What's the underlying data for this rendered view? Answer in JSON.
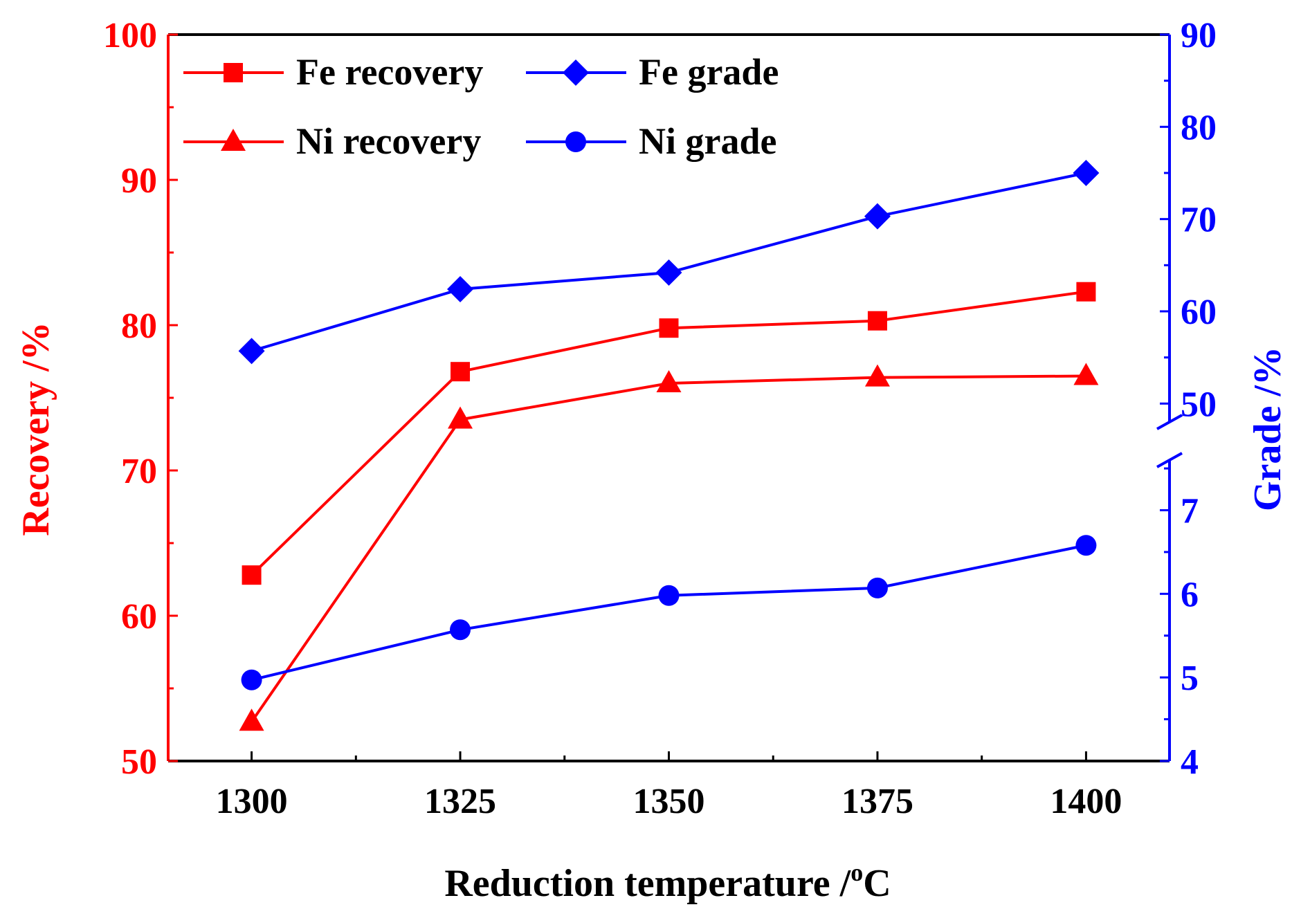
{
  "chart_data": {
    "type": "line",
    "title": "",
    "x": [
      1300,
      1325,
      1350,
      1375,
      1400
    ],
    "x_tick_labels": [
      "1300",
      "1325",
      "1350",
      "1375",
      "1400"
    ],
    "xlabel": "Reduction temperature /",
    "xlabel_superscript": "o",
    "xlabel_unit": "C",
    "xlim": [
      1290,
      1410
    ],
    "y_left": {
      "label": "Recovery  /%",
      "range": [
        50,
        100
      ],
      "ticks": [
        "50",
        "60",
        "70",
        "80",
        "90",
        "100"
      ],
      "color": "#ff0000"
    },
    "y_right": {
      "label": "Grade /%",
      "broken": true,
      "lower_range": [
        4,
        7.6
      ],
      "lower_ticks": [
        "4",
        "5",
        "6",
        "7"
      ],
      "upper_range": [
        48,
        90
      ],
      "upper_ticks": [
        "50",
        "60",
        "70",
        "80",
        "90"
      ],
      "color": "#0000ff"
    },
    "series": [
      {
        "name": "Fe recovery",
        "axis": "left",
        "marker": "square",
        "color": "#ff0000",
        "values": [
          62.8,
          76.8,
          79.8,
          80.3,
          82.3
        ]
      },
      {
        "name": "Ni recovery",
        "axis": "left",
        "marker": "triangle",
        "color": "#ff0000",
        "values": [
          52.7,
          73.5,
          76.0,
          76.4,
          76.5
        ]
      },
      {
        "name": "Fe grade",
        "axis": "right-upper",
        "marker": "diamond",
        "color": "#0000ff",
        "values": [
          55.7,
          62.4,
          64.2,
          70.3,
          75.0
        ]
      },
      {
        "name": "Ni grade",
        "axis": "right-lower",
        "marker": "circle",
        "color": "#0000ff",
        "values": [
          4.97,
          5.57,
          5.98,
          6.07,
          6.58
        ]
      }
    ],
    "legend": {
      "position": "top-left",
      "columns": 2
    }
  }
}
